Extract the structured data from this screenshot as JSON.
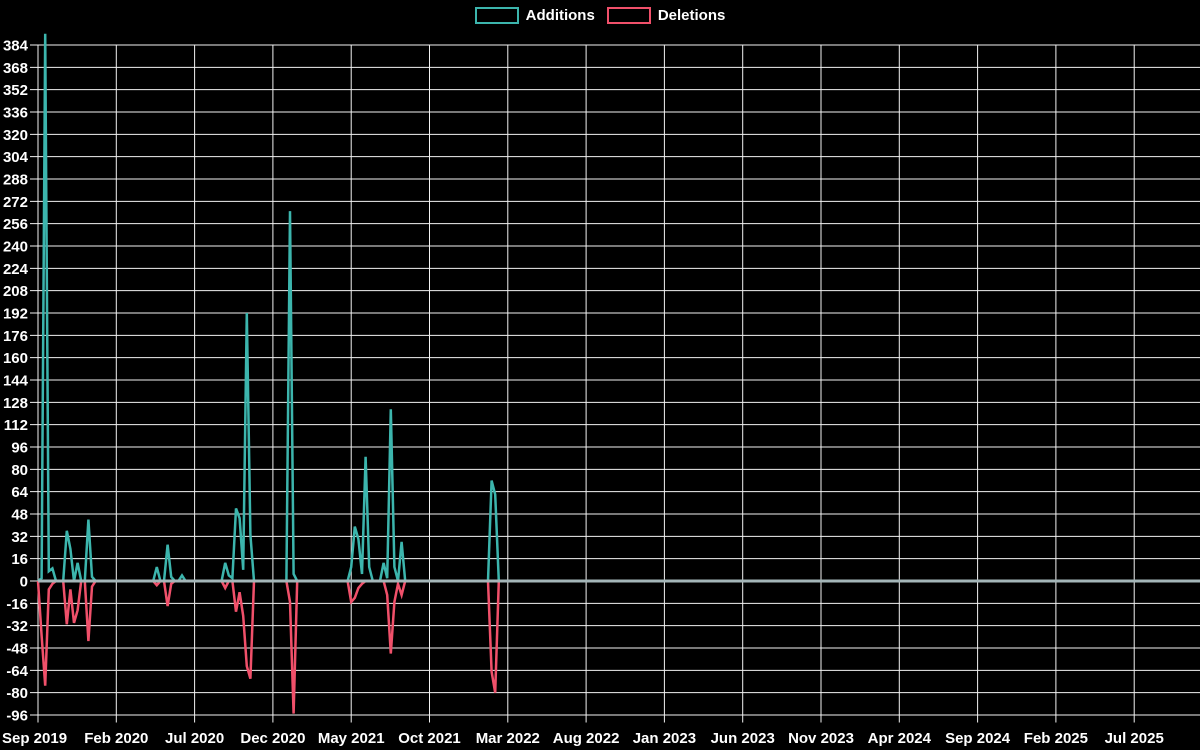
{
  "legend": {
    "items": [
      {
        "name": "additions",
        "label": "Additions",
        "color": "#3cb5ad"
      },
      {
        "name": "deletions",
        "label": "Deletions",
        "color": "#f0506a"
      }
    ]
  },
  "chart_data": {
    "type": "line",
    "description": "Weekly additions and deletions time series",
    "legend_position": "top-center",
    "grid": true,
    "colors": {
      "background": "#000000",
      "grid": "#f2f2f2",
      "zero_line": "#a4b6b8",
      "text": "#ffffff",
      "additions": "#3cb5ad",
      "deletions": "#f0506a"
    },
    "x_axis": {
      "tick_labels": [
        "Sep 2019",
        "Feb 2020",
        "Jul 2020",
        "Dec 2020",
        "May 2021",
        "Oct 2021",
        "Mar 2022",
        "Aug 2022",
        "Jan 2023",
        "Jun 2023",
        "Nov 2023",
        "Apr 2024",
        "Sep 2024",
        "Feb 2025",
        "Jul 2025"
      ],
      "interval_months": 5,
      "unit": "weeks",
      "weeks_span": 324
    },
    "y_axis": {
      "min": -96,
      "max": 384,
      "tick_step": 16
    },
    "series": [
      {
        "name": "Additions",
        "color": "#3cb5ad",
        "points_weekly": [
          [
            1,
            2
          ],
          [
            2,
            392
          ],
          [
            3,
            7
          ],
          [
            4,
            9
          ],
          [
            8,
            36
          ],
          [
            9,
            23
          ],
          [
            11,
            13
          ],
          [
            14,
            44
          ],
          [
            15,
            3
          ],
          [
            33,
            10
          ],
          [
            36,
            26
          ],
          [
            37,
            3
          ],
          [
            40,
            4
          ],
          [
            52,
            13
          ],
          [
            53,
            4
          ],
          [
            54,
            2
          ],
          [
            55,
            52
          ],
          [
            56,
            45
          ],
          [
            57,
            8
          ],
          [
            58,
            192
          ],
          [
            59,
            33
          ],
          [
            70,
            265
          ],
          [
            71,
            5
          ],
          [
            87,
            10
          ],
          [
            88,
            39
          ],
          [
            89,
            30
          ],
          [
            90,
            5
          ],
          [
            91,
            89
          ],
          [
            92,
            10
          ],
          [
            96,
            13
          ],
          [
            97,
            2
          ],
          [
            98,
            123
          ],
          [
            99,
            10
          ],
          [
            101,
            28
          ],
          [
            126,
            72
          ],
          [
            127,
            62
          ]
        ]
      },
      {
        "name": "Deletions",
        "color": "#f0506a",
        "points_weekly": [
          [
            1,
            -39
          ],
          [
            2,
            -75
          ],
          [
            3,
            -6
          ],
          [
            4,
            -2
          ],
          [
            8,
            -31
          ],
          [
            9,
            -6
          ],
          [
            10,
            -30
          ],
          [
            11,
            -21
          ],
          [
            14,
            -43
          ],
          [
            15,
            -4
          ],
          [
            33,
            -3
          ],
          [
            36,
            -18
          ],
          [
            37,
            -2
          ],
          [
            52,
            -5
          ],
          [
            55,
            -22
          ],
          [
            56,
            -8
          ],
          [
            57,
            -25
          ],
          [
            58,
            -61
          ],
          [
            59,
            -70
          ],
          [
            70,
            -15
          ],
          [
            71,
            -95
          ],
          [
            87,
            -15
          ],
          [
            88,
            -12
          ],
          [
            89,
            -5
          ],
          [
            90,
            -2
          ],
          [
            97,
            -10
          ],
          [
            98,
            -52
          ],
          [
            99,
            -15
          ],
          [
            100,
            -2
          ],
          [
            101,
            -10
          ],
          [
            126,
            -65
          ],
          [
            127,
            -80
          ]
        ]
      }
    ]
  }
}
